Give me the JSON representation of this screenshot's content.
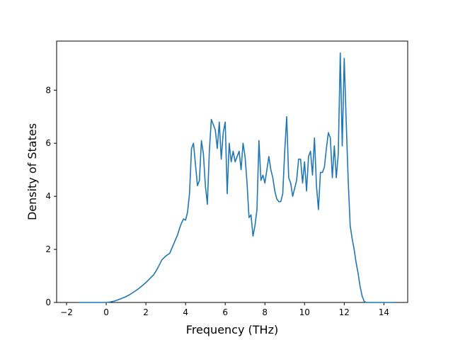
{
  "chart_data": {
    "type": "line",
    "title": "",
    "xlabel": "Frequency (THz)",
    "ylabel": "Density of States",
    "xlim": [
      -2.5,
      15.2
    ],
    "ylim": [
      0,
      9.85
    ],
    "x_ticks": [
      -2,
      0,
      2,
      4,
      6,
      8,
      10,
      12,
      14
    ],
    "y_ticks": [
      0,
      2,
      4,
      6,
      8
    ],
    "x_tick_labels": [
      "−2",
      "0",
      "2",
      "4",
      "6",
      "8",
      "10",
      "12",
      "14"
    ],
    "y_tick_labels": [
      "0",
      "2",
      "4",
      "6",
      "8"
    ],
    "grid": false,
    "legend": "none",
    "colors": {
      "line": "#1f77b4",
      "axes": "#000000"
    },
    "series": [
      {
        "x": [
          -1.4,
          0.0,
          0.2,
          0.4,
          0.6,
          0.8,
          1.0,
          1.2,
          1.4,
          1.6,
          1.8,
          2.0,
          2.2,
          2.4,
          2.6,
          2.8,
          3.0,
          3.2,
          3.4,
          3.6,
          3.7,
          3.8,
          3.9,
          4.0,
          4.1,
          4.2,
          4.3,
          4.4,
          4.5,
          4.6,
          4.7,
          4.8,
          4.9,
          5.0,
          5.1,
          5.2,
          5.3,
          5.4,
          5.5,
          5.6,
          5.7,
          5.8,
          5.9,
          6.0,
          6.1,
          6.2,
          6.3,
          6.4,
          6.5,
          6.6,
          6.7,
          6.8,
          6.9,
          7.0,
          7.1,
          7.2,
          7.3,
          7.4,
          7.5,
          7.6,
          7.7,
          7.8,
          7.9,
          8.0,
          8.1,
          8.2,
          8.3,
          8.4,
          8.5,
          8.6,
          8.7,
          8.8,
          8.9,
          9.0,
          9.1,
          9.2,
          9.3,
          9.4,
          9.5,
          9.6,
          9.7,
          9.8,
          9.9,
          10.0,
          10.1,
          10.2,
          10.3,
          10.4,
          10.5,
          10.6,
          10.7,
          10.8,
          10.9,
          11.0,
          11.1,
          11.2,
          11.3,
          11.4,
          11.5,
          11.6,
          11.7,
          11.8,
          11.9,
          12.0,
          12.1,
          12.2,
          12.3,
          12.4,
          12.5,
          12.6,
          12.7,
          12.8,
          12.9,
          13.0,
          13.1,
          13.2,
          14.5
        ],
        "y": [
          0,
          0,
          0.02,
          0.05,
          0.1,
          0.16,
          0.22,
          0.3,
          0.4,
          0.5,
          0.62,
          0.75,
          0.9,
          1.05,
          1.3,
          1.6,
          1.75,
          1.85,
          2.2,
          2.55,
          2.8,
          3.0,
          3.15,
          3.1,
          3.4,
          4.1,
          5.8,
          6.0,
          5.2,
          4.4,
          4.6,
          6.1,
          5.6,
          4.4,
          3.7,
          5.7,
          6.9,
          6.7,
          6.5,
          5.8,
          6.8,
          5.4,
          6.4,
          6.8,
          4.1,
          6.0,
          5.3,
          5.7,
          5.3,
          5.5,
          5.7,
          5.0,
          6.0,
          5.5,
          4.5,
          3.2,
          3.3,
          2.5,
          2.9,
          3.5,
          6.1,
          4.6,
          4.8,
          4.5,
          5.0,
          5.5,
          5.0,
          4.7,
          4.2,
          3.9,
          3.8,
          3.8,
          4.1,
          5.7,
          7.0,
          4.7,
          4.5,
          4.0,
          4.3,
          4.6,
          5.4,
          5.4,
          4.5,
          5.3,
          4.2,
          5.5,
          5.7,
          4.8,
          6.2,
          4.4,
          3.5,
          4.9,
          4.9,
          5.1,
          5.8,
          6.4,
          6.2,
          4.7,
          5.9,
          4.7,
          5.6,
          9.4,
          5.9,
          9.2,
          6.8,
          4.6,
          2.9,
          2.4,
          2.0,
          1.5,
          1.1,
          0.6,
          0.25,
          0.05,
          0,
          0,
          0
        ]
      }
    ]
  }
}
